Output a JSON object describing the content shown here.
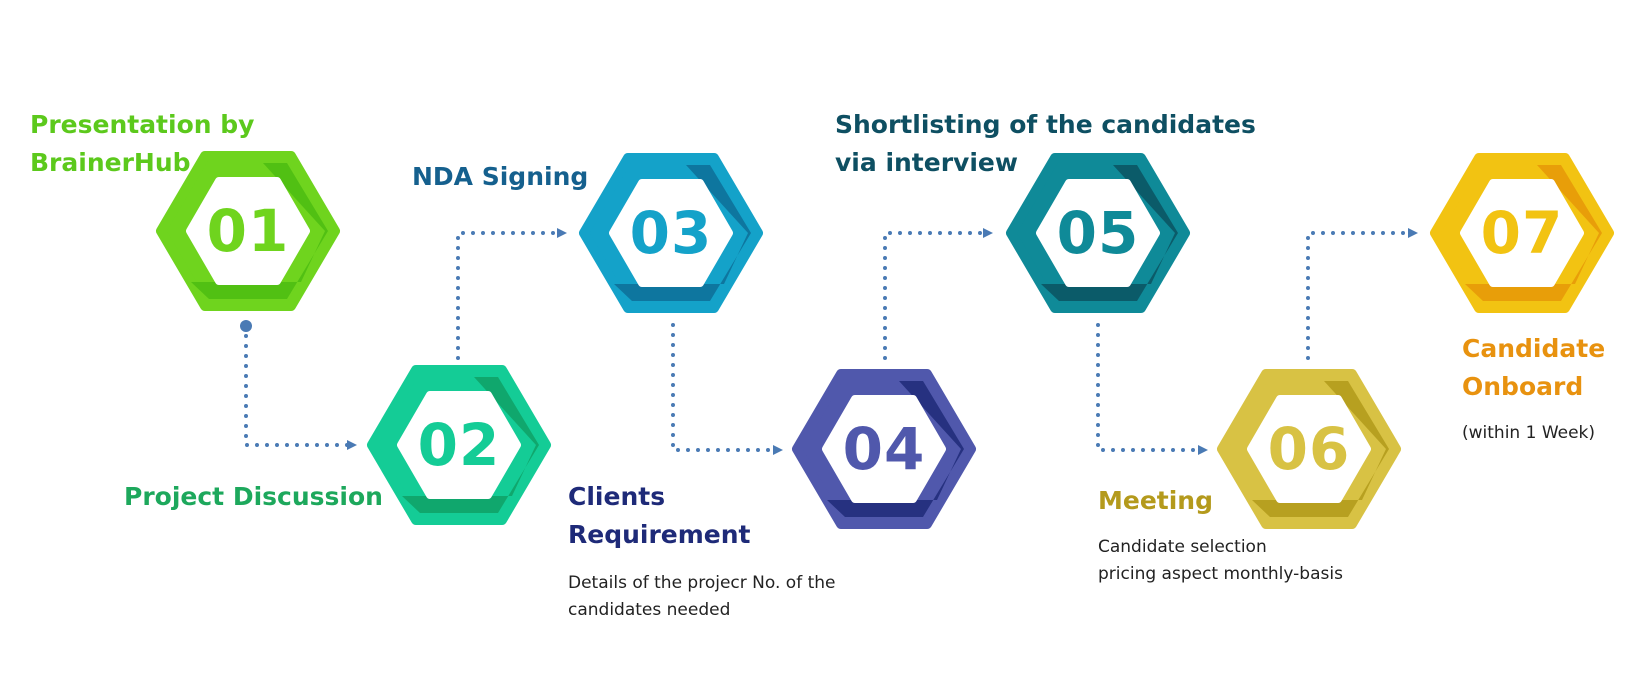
{
  "steps": [
    {
      "number": "01",
      "title_lines": [
        "Presentation by",
        "BrainerHub"
      ],
      "description_lines": [],
      "color": "#6fd41e",
      "shadow": "#4cbc12"
    },
    {
      "number": "02",
      "title_lines": [
        "Project Discussion"
      ],
      "description_lines": [],
      "color": "#14cc96",
      "shadow": "#0fa066"
    },
    {
      "number": "03",
      "title_lines": [
        "NDA Signing"
      ],
      "description_lines": [],
      "color": "#14a2c9",
      "shadow": "#0d6e98"
    },
    {
      "number": "04",
      "title_lines": [
        "Clients",
        "Requirement"
      ],
      "description_lines": [
        "Details of the projecr No. of the",
        "candidates needed"
      ],
      "color": "#5058ac",
      "shadow": "#1f2a78"
    },
    {
      "number": "05",
      "title_lines": [
        "Shortlisting of the candidates",
        "via interview"
      ],
      "description_lines": [],
      "color": "#0f8a98",
      "shadow": "#0b5260"
    },
    {
      "number": "06",
      "title_lines": [
        "Meeting"
      ],
      "description_lines": [
        "Candidate selection",
        "pricing aspect monthly-basis"
      ],
      "color": "#d8c244",
      "shadow": "#b19a1a"
    },
    {
      "number": "07",
      "title_lines": [
        "Candidate",
        "Onboard"
      ],
      "description_lines": [
        "(within 1 Week)"
      ],
      "color": "#f2c312",
      "shadow": "#e69808"
    }
  ],
  "colors": {
    "connector": "#4a7ab4",
    "title_01": "#5cc91c",
    "title_02": "#1da85c",
    "title_03": "#15608e",
    "title_04": "#1e2a78",
    "title_05": "#0e4f62",
    "title_06": "#b49a1c",
    "title_07": "#e8920f"
  }
}
